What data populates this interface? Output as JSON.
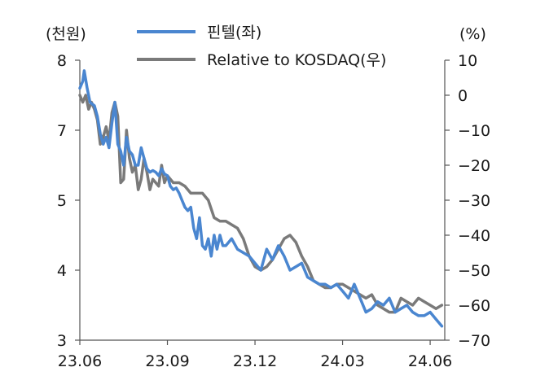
{
  "chart_data": {
    "type": "line",
    "title": "",
    "y_left_unit": "(천원)",
    "y_right_unit": "(%)",
    "x_tick_labels": [
      "23.06",
      "23.09",
      "23.12",
      "24.03",
      "24.06"
    ],
    "y_left_tick_labels": [
      "3",
      "4",
      "5",
      "7",
      "8"
    ],
    "y_left_range": [
      3,
      8
    ],
    "y_right_tick_labels": [
      "10",
      "0",
      "-10",
      "-20",
      "-30",
      "-40",
      "-50",
      "-60",
      "-70"
    ],
    "y_right_range": [
      -70,
      10
    ],
    "x_range_months": [
      0,
      12.5
    ],
    "legend": [
      "핀텔(좌)",
      "Relative to KOSDAQ(우)"
    ],
    "colors": {
      "series1": "#4a86d0",
      "series2": "#7a7a7a"
    },
    "series": [
      {
        "name": "핀텔(좌)",
        "axis": "left",
        "x": [
          0,
          0.1,
          0.15,
          0.25,
          0.35,
          0.5,
          0.6,
          0.7,
          0.8,
          0.9,
          1.0,
          1.1,
          1.2,
          1.3,
          1.4,
          1.5,
          1.6,
          1.7,
          1.8,
          1.9,
          2.0,
          2.1,
          2.2,
          2.3,
          2.4,
          2.5,
          2.6,
          2.7,
          2.8,
          2.9,
          3.0,
          3.1,
          3.2,
          3.3,
          3.4,
          3.5,
          3.6,
          3.7,
          3.8,
          3.9,
          4.0,
          4.1,
          4.2,
          4.3,
          4.4,
          4.5,
          4.6,
          4.7,
          4.8,
          4.9,
          5.0,
          5.2,
          5.4,
          5.6,
          5.8,
          6.0,
          6.2,
          6.4,
          6.6,
          6.8,
          7.0,
          7.2,
          7.4,
          7.6,
          7.8,
          8.0,
          8.2,
          8.4,
          8.6,
          8.8,
          9.0,
          9.2,
          9.4,
          9.6,
          9.8,
          10.0,
          10.2,
          10.4,
          10.6,
          10.8,
          11.0,
          11.2,
          11.4,
          11.6,
          11.8,
          12.0,
          12.2,
          12.4
        ],
        "values": [
          7.6,
          7.7,
          7.85,
          7.6,
          7.4,
          7.35,
          7.2,
          6.9,
          6.6,
          6.8,
          6.5,
          7.1,
          7.4,
          6.6,
          6.4,
          6.0,
          6.8,
          6.4,
          6.3,
          6.0,
          6.0,
          6.5,
          6.2,
          5.9,
          5.8,
          5.85,
          5.8,
          5.7,
          5.9,
          5.75,
          5.7,
          5.4,
          5.3,
          5.35,
          5.2,
          5.0,
          4.9,
          4.85,
          4.9,
          4.6,
          4.45,
          4.75,
          4.35,
          4.3,
          4.45,
          4.2,
          4.5,
          4.3,
          4.5,
          4.35,
          4.35,
          4.45,
          4.3,
          4.25,
          4.2,
          4.1,
          4.0,
          4.3,
          4.15,
          4.35,
          4.2,
          4.0,
          4.05,
          4.1,
          3.9,
          3.85,
          3.8,
          3.8,
          3.75,
          3.8,
          3.7,
          3.6,
          3.8,
          3.6,
          3.4,
          3.45,
          3.55,
          3.5,
          3.6,
          3.4,
          3.45,
          3.5,
          3.4,
          3.35,
          3.35,
          3.4,
          3.3,
          3.2
        ]
      },
      {
        "name": "Relative to KOSDAQ(우)",
        "axis": "right",
        "x": [
          0,
          0.1,
          0.2,
          0.3,
          0.4,
          0.5,
          0.6,
          0.7,
          0.8,
          0.9,
          1.0,
          1.1,
          1.2,
          1.3,
          1.4,
          1.5,
          1.6,
          1.7,
          1.8,
          1.9,
          2.0,
          2.1,
          2.2,
          2.3,
          2.4,
          2.5,
          2.6,
          2.7,
          2.8,
          2.9,
          3.0,
          3.2,
          3.4,
          3.6,
          3.8,
          4.0,
          4.2,
          4.4,
          4.6,
          4.8,
          5.0,
          5.2,
          5.4,
          5.6,
          5.8,
          6.0,
          6.2,
          6.4,
          6.6,
          6.8,
          7.0,
          7.2,
          7.4,
          7.6,
          7.8,
          8.0,
          8.2,
          8.4,
          8.6,
          8.8,
          9.0,
          9.2,
          9.4,
          9.6,
          9.8,
          10.0,
          10.2,
          10.4,
          10.6,
          10.8,
          11.0,
          11.2,
          11.4,
          11.6,
          11.8,
          12.0,
          12.2,
          12.4
        ],
        "values": [
          0,
          -2,
          0,
          -4,
          -2,
          -4,
          -7,
          -14,
          -12,
          -9,
          -13,
          -5,
          -2,
          -6,
          -25,
          -24,
          -10,
          -18,
          -22,
          -20,
          -27,
          -24,
          -18,
          -22,
          -27,
          -24,
          -25,
          -26,
          -20,
          -25,
          -23,
          -25,
          -25,
          -26,
          -28,
          -28,
          -28,
          -30,
          -35,
          -36,
          -36,
          -37,
          -38,
          -41,
          -46,
          -49,
          -50,
          -49,
          -47,
          -44,
          -41,
          -40,
          -42,
          -46,
          -49,
          -53,
          -54,
          -55,
          -55,
          -54,
          -54,
          -55,
          -56,
          -57,
          -58,
          -57,
          -60,
          -61,
          -62,
          -62,
          -58,
          -59,
          -60,
          -58,
          -59,
          -60,
          -61,
          -60
        ]
      }
    ]
  }
}
